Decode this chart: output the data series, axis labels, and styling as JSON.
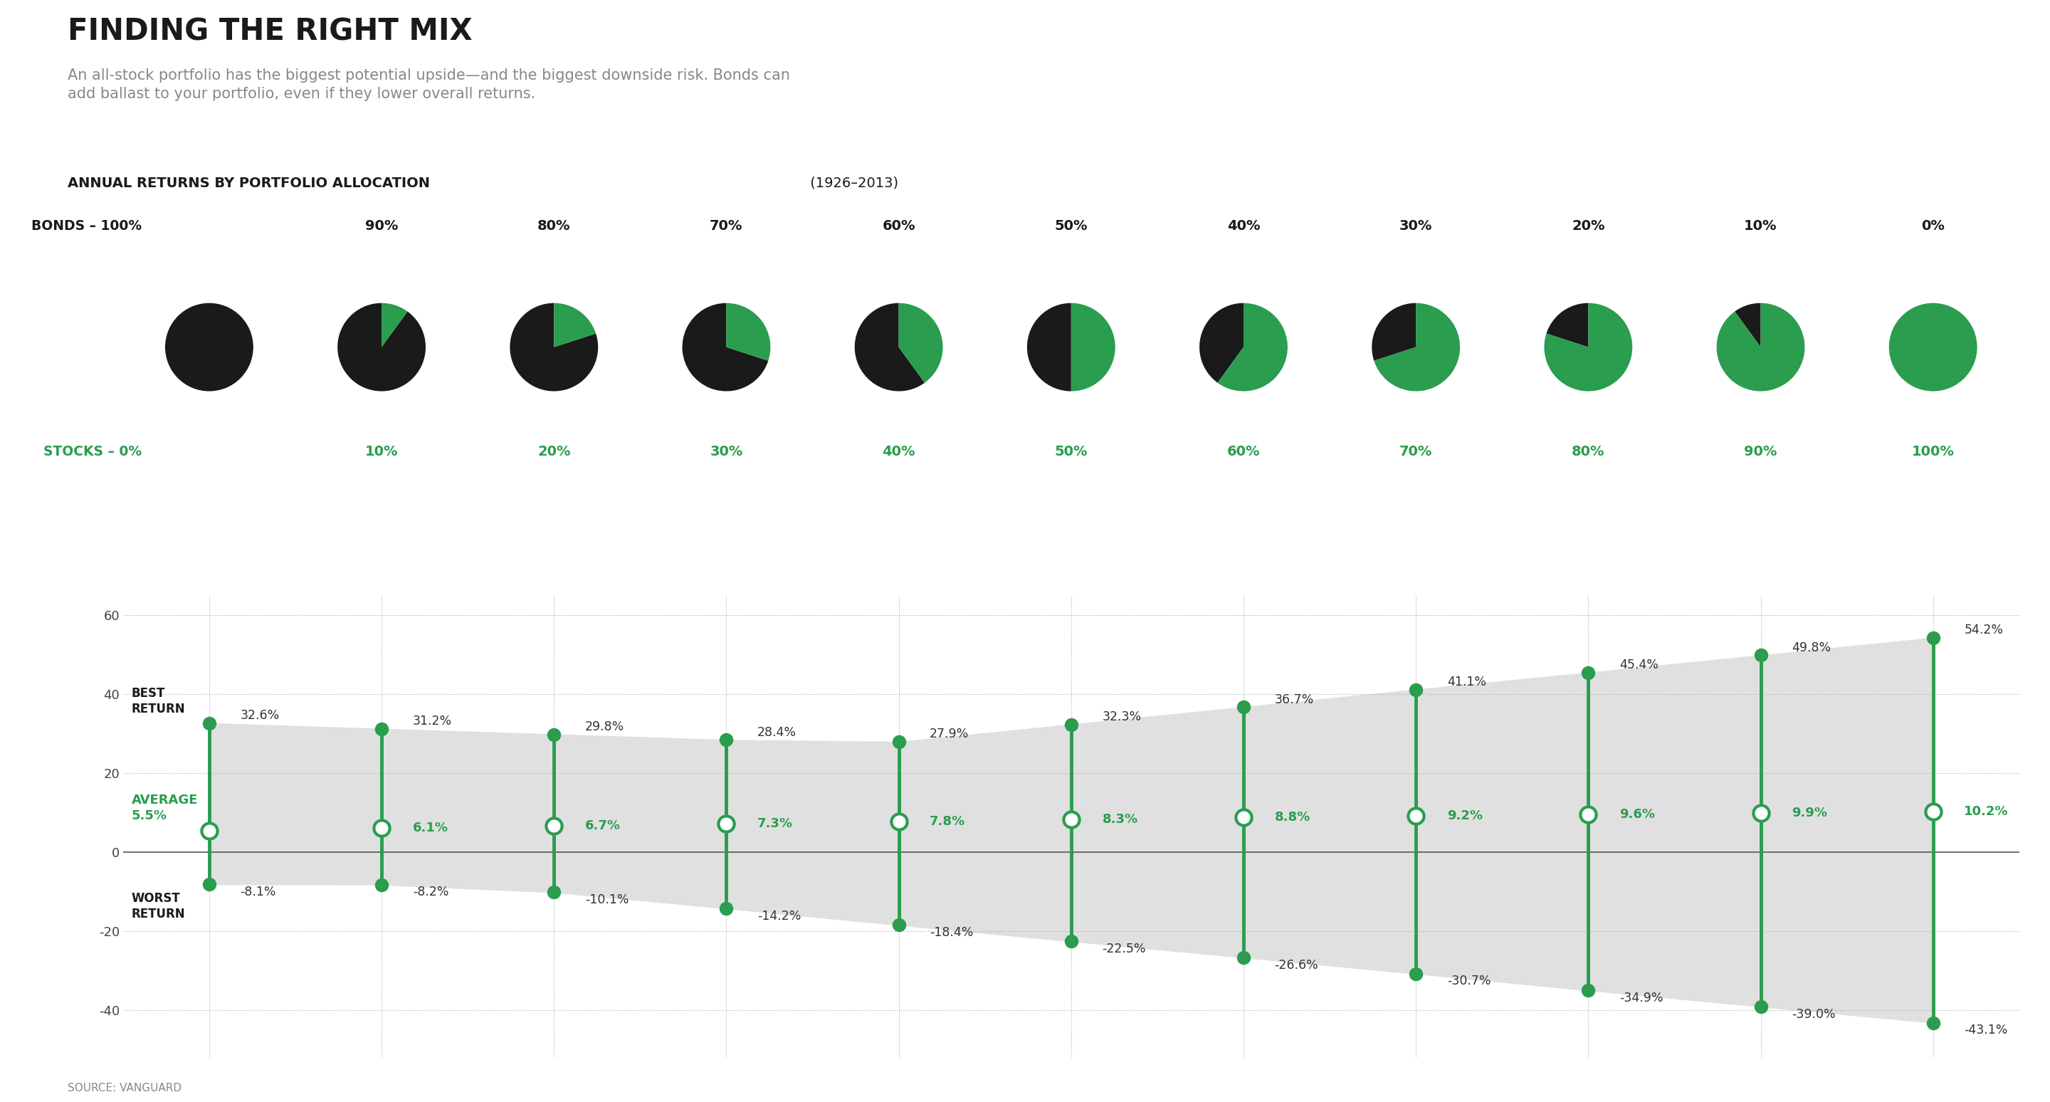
{
  "title": "FINDING THE RIGHT MIX",
  "subtitle": "An all-stock portfolio has the biggest potential upside—and the biggest downside risk. Bonds can\nadd ballast to your portfolio, even if they lower overall returns.",
  "section_title_bold": "ANNUAL RETURNS BY PORTFOLIO ALLOCATION",
  "section_title_light": " (1926–2013)",
  "bonds_pcts": [
    "100%",
    "90%",
    "80%",
    "70%",
    "60%",
    "50%",
    "40%",
    "30%",
    "20%",
    "10%",
    "0%"
  ],
  "stocks_pcts": [
    "0%",
    "10%",
    "20%",
    "30%",
    "40%",
    "50%",
    "60%",
    "70%",
    "80%",
    "90%",
    "100%"
  ],
  "best": [
    32.6,
    31.2,
    29.8,
    28.4,
    27.9,
    32.3,
    36.7,
    41.1,
    45.4,
    49.8,
    54.2
  ],
  "avg": [
    5.5,
    6.1,
    6.7,
    7.3,
    7.8,
    8.3,
    8.8,
    9.2,
    9.6,
    9.9,
    10.2
  ],
  "worst": [
    -8.1,
    -8.2,
    -10.1,
    -14.2,
    -18.4,
    -22.5,
    -26.6,
    -30.7,
    -34.9,
    -39.0,
    -43.1
  ],
  "green": "#2a9d4e",
  "dark": "#1a1a1a",
  "gray_bg": "#e0e0e0",
  "yticks": [
    -40,
    -20,
    0,
    20,
    40,
    60
  ],
  "ylim": [
    -52,
    65
  ],
  "source": "SOURCE: VANGUARD"
}
